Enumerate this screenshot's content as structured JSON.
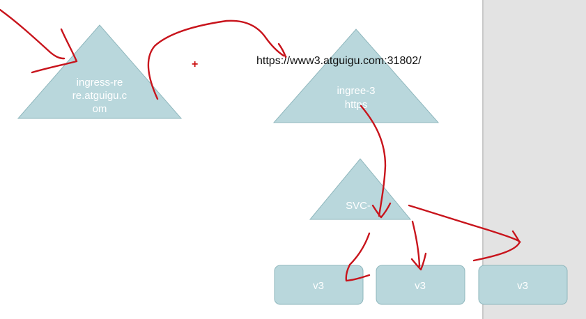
{
  "url_label": "https://www3.atguigu.com:31802/",
  "cursor_marker": "+",
  "colors": {
    "shape_fill": "#b9d7dc",
    "shape_stroke": "#8fb7bd",
    "annotation_ink": "#c8141c",
    "side_panel": "#e3e3e3"
  },
  "triangles": {
    "ingress_left": {
      "lines": [
        "ingress-re",
        "re.atguigu.c",
        "om"
      ]
    },
    "ingress_right": {
      "lines": [
        "ingree-3",
        "https"
      ]
    },
    "svc": {
      "lines": [
        "SVC-"
      ]
    }
  },
  "pods": [
    {
      "label": "v3"
    },
    {
      "label": "v3"
    },
    {
      "label": "v3"
    }
  ]
}
